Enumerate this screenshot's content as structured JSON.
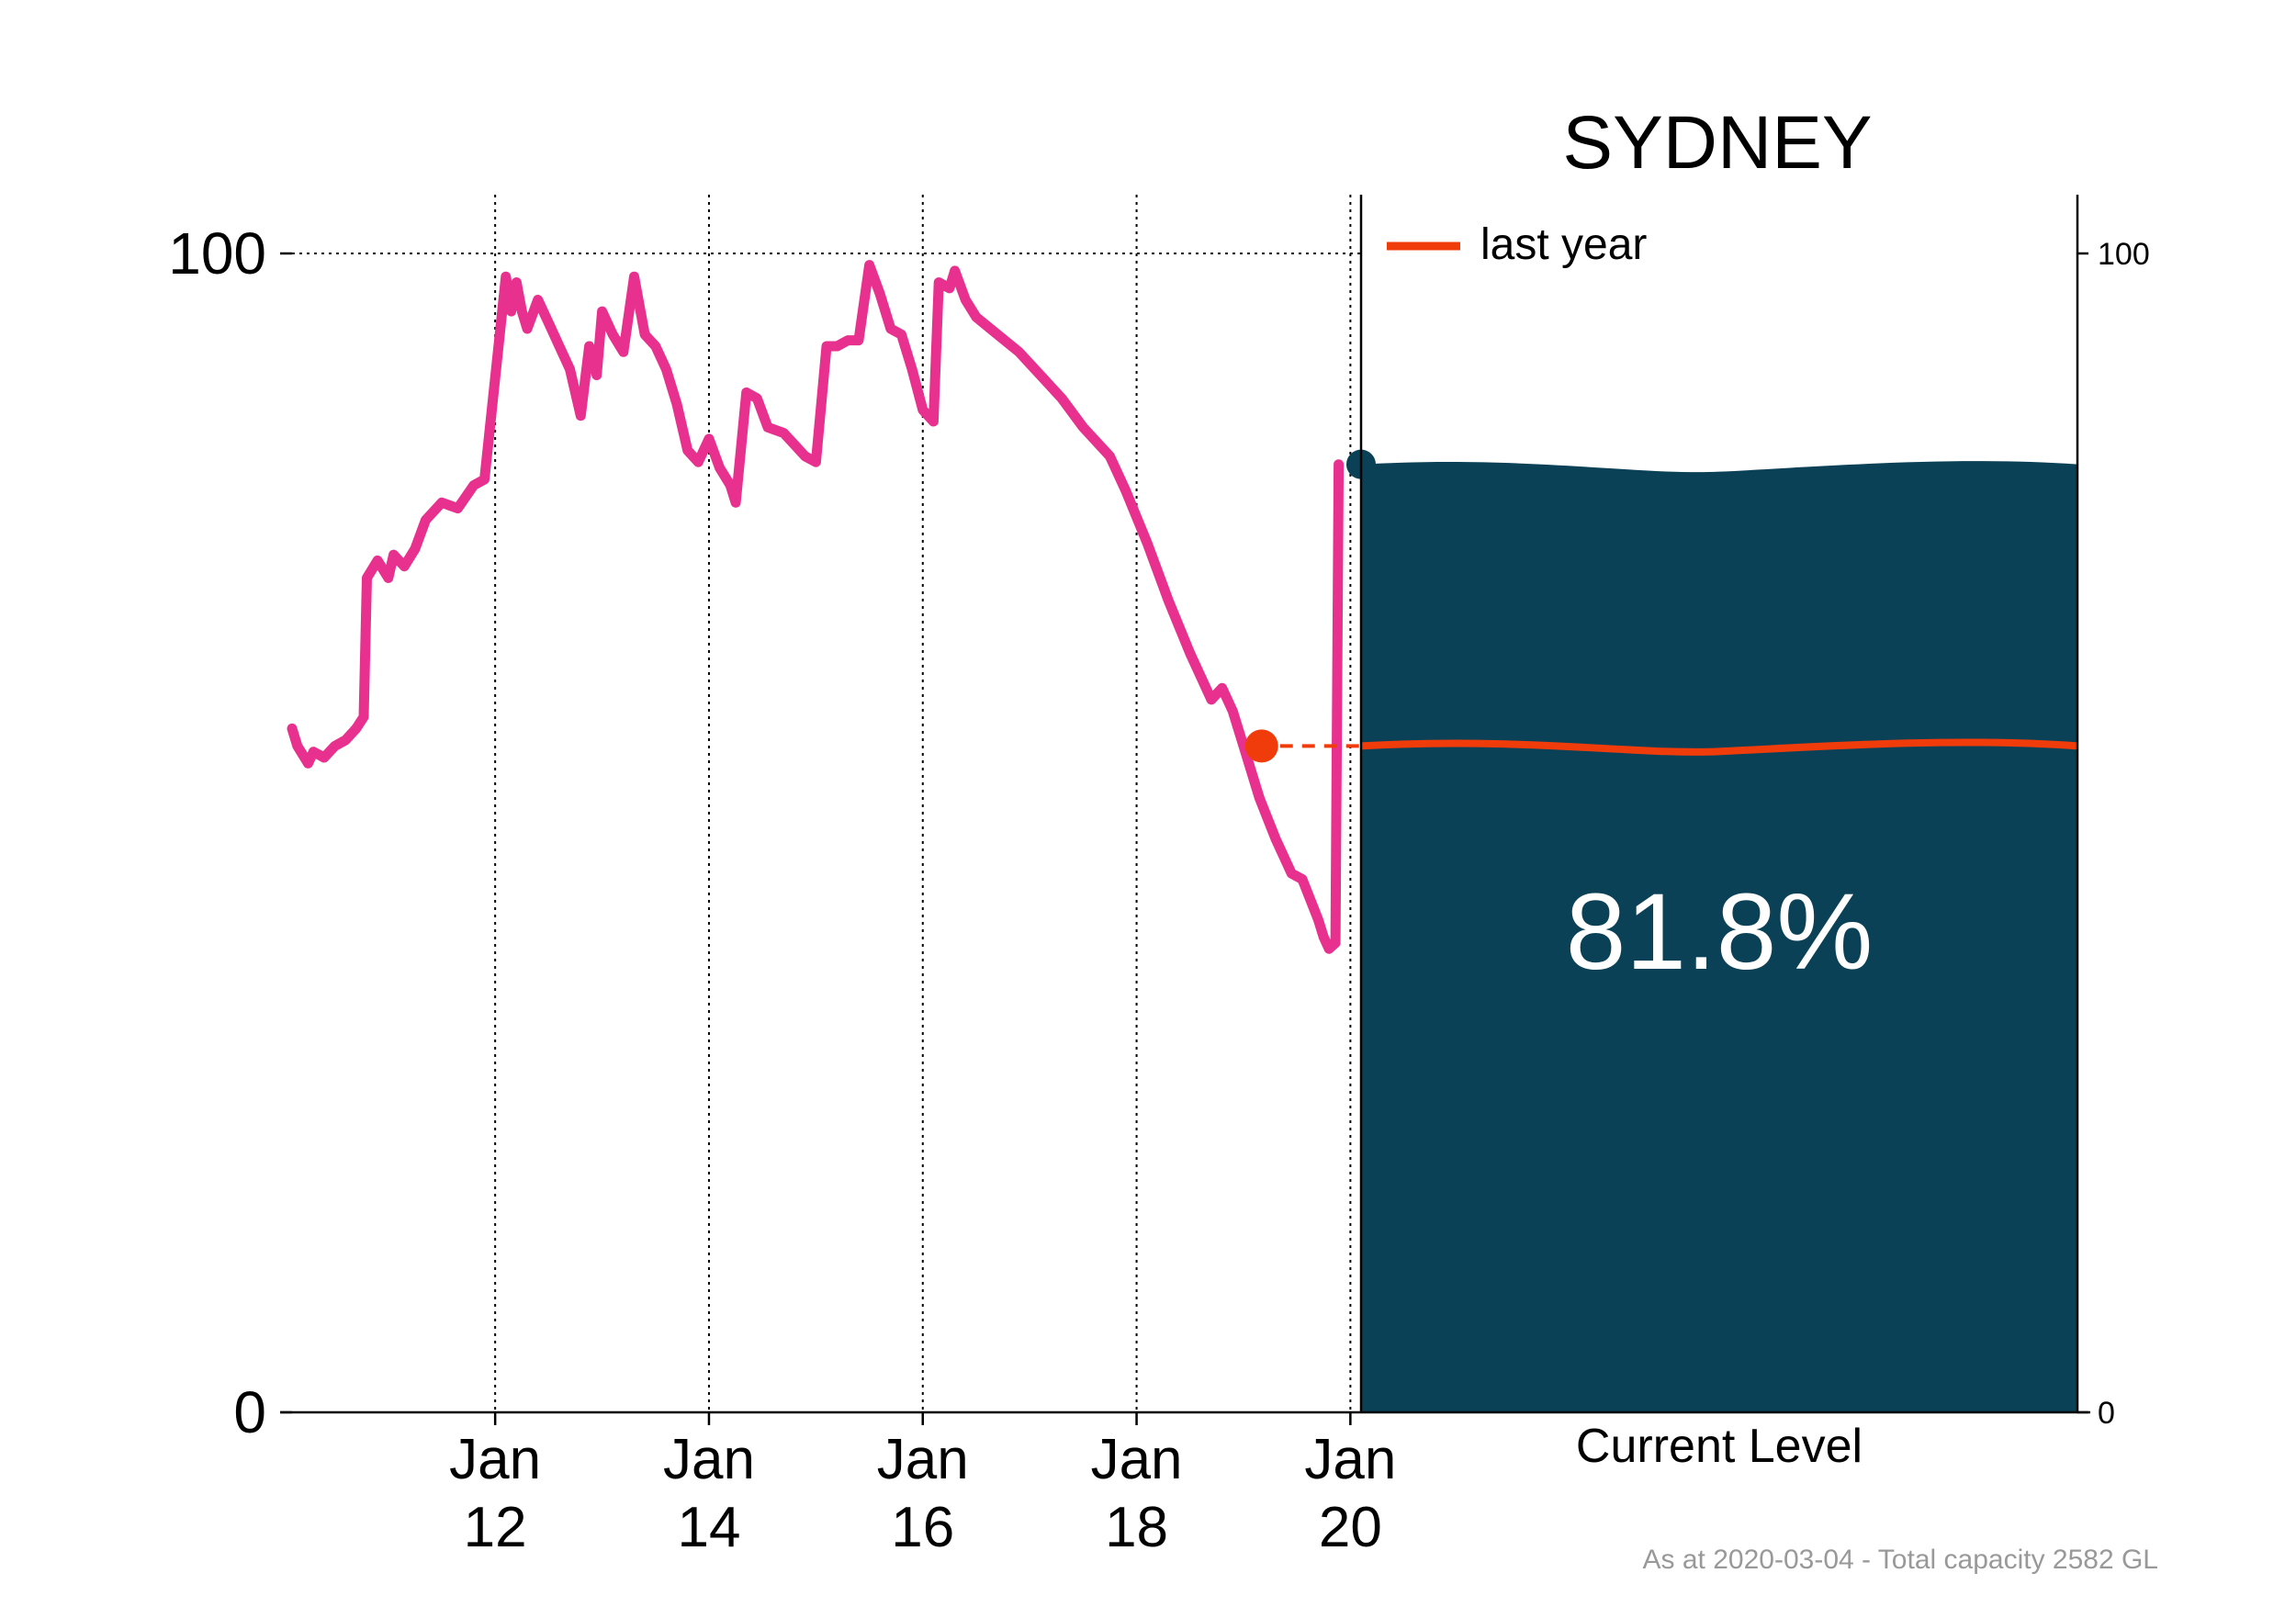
{
  "title": "SYDNEY",
  "footnote": "As at 2020-03-04 - Total capacity 2582 GL",
  "colors": {
    "history_line": "#e8318f",
    "water": "#0b4157",
    "last_year": "#f03c0a",
    "axis": "#000000",
    "footnote": "#999999"
  },
  "chart_data": [
    {
      "type": "line",
      "title": "",
      "xlabel": "",
      "ylabel": "",
      "x_axis": "year",
      "xlim": [
        2010.1,
        2020.1
      ],
      "ylim": [
        0,
        100
      ],
      "xticks": [
        {
          "value": 2012,
          "label": [
            "Jan",
            "12"
          ]
        },
        {
          "value": 2014,
          "label": [
            "Jan",
            "14"
          ]
        },
        {
          "value": 2016,
          "label": [
            "Jan",
            "16"
          ]
        },
        {
          "value": 2018,
          "label": [
            "Jan",
            "18"
          ]
        },
        {
          "value": 2020,
          "label": [
            "Jan",
            "20"
          ]
        }
      ],
      "yticks": [
        0,
        100
      ],
      "grid": {
        "x": true,
        "y_at": [
          100
        ]
      },
      "series": [
        {
          "name": "",
          "points": [
            [
              2010.1,
              59.0
            ],
            [
              2010.15,
              57.5
            ],
            [
              2010.25,
              56.0
            ],
            [
              2010.3,
              57.0
            ],
            [
              2010.4,
              56.5
            ],
            [
              2010.5,
              57.5
            ],
            [
              2010.6,
              58.0
            ],
            [
              2010.7,
              59.0
            ],
            [
              2010.77,
              60.0
            ],
            [
              2010.8,
              72.0
            ],
            [
              2010.9,
              73.5
            ],
            [
              2011.0,
              72.0
            ],
            [
              2011.05,
              74.0
            ],
            [
              2011.15,
              73.0
            ],
            [
              2011.25,
              74.5
            ],
            [
              2011.35,
              77.0
            ],
            [
              2011.5,
              78.5
            ],
            [
              2011.65,
              78.0
            ],
            [
              2011.8,
              80.0
            ],
            [
              2011.9,
              80.5
            ],
            [
              2012.1,
              98.0
            ],
            [
              2012.15,
              95.0
            ],
            [
              2012.2,
              97.5
            ],
            [
              2012.25,
              95.0
            ],
            [
              2012.3,
              93.5
            ],
            [
              2012.4,
              96.0
            ],
            [
              2012.5,
              94.0
            ],
            [
              2012.6,
              92.0
            ],
            [
              2012.7,
              90.0
            ],
            [
              2012.8,
              86.0
            ],
            [
              2012.88,
              92.0
            ],
            [
              2012.95,
              89.5
            ],
            [
              2013.0,
              95.0
            ],
            [
              2013.1,
              93.0
            ],
            [
              2013.2,
              91.5
            ],
            [
              2013.3,
              98.0
            ],
            [
              2013.4,
              93.0
            ],
            [
              2013.5,
              92.0
            ],
            [
              2013.6,
              90.0
            ],
            [
              2013.7,
              87.0
            ],
            [
              2013.8,
              83.0
            ],
            [
              2013.9,
              82.0
            ],
            [
              2014.0,
              84.0
            ],
            [
              2014.1,
              81.5
            ],
            [
              2014.2,
              80.0
            ],
            [
              2014.25,
              78.5
            ],
            [
              2014.35,
              88.0
            ],
            [
              2014.45,
              87.5
            ],
            [
              2014.55,
              85.0
            ],
            [
              2014.7,
              84.5
            ],
            [
              2014.8,
              83.5
            ],
            [
              2014.9,
              82.5
            ],
            [
              2015.0,
              82.0
            ],
            [
              2015.1,
              92.0
            ],
            [
              2015.2,
              92.0
            ],
            [
              2015.3,
              92.5
            ],
            [
              2015.4,
              92.5
            ],
            [
              2015.5,
              99.0
            ],
            [
              2015.6,
              96.5
            ],
            [
              2015.7,
              93.5
            ],
            [
              2015.8,
              93.0
            ],
            [
              2015.9,
              90.0
            ],
            [
              2016.0,
              86.5
            ],
            [
              2016.1,
              85.5
            ],
            [
              2016.15,
              97.5
            ],
            [
              2016.25,
              97.0
            ],
            [
              2016.3,
              98.5
            ],
            [
              2016.4,
              96.0
            ],
            [
              2016.5,
              94.5
            ],
            [
              2016.7,
              93.0
            ],
            [
              2016.9,
              91.5
            ],
            [
              2017.1,
              89.5
            ],
            [
              2017.3,
              87.5
            ],
            [
              2017.5,
              85.0
            ],
            [
              2017.75,
              82.5
            ],
            [
              2017.9,
              79.5
            ],
            [
              2018.1,
              75.0
            ],
            [
              2018.3,
              70.0
            ],
            [
              2018.5,
              65.5
            ],
            [
              2018.7,
              61.5
            ],
            [
              2018.8,
              62.5
            ],
            [
              2018.9,
              60.5
            ],
            [
              2019.0,
              57.5
            ],
            [
              2019.15,
              53.0
            ],
            [
              2019.3,
              49.5
            ],
            [
              2019.45,
              46.5
            ],
            [
              2019.55,
              46.0
            ],
            [
              2019.7,
              42.5
            ],
            [
              2019.75,
              41.0
            ],
            [
              2019.8,
              40.0
            ],
            [
              2019.86,
              40.5
            ],
            [
              2019.89,
              81.8
            ]
          ]
        }
      ],
      "last_year_marker": {
        "x": 2019.17,
        "value": 57.5
      },
      "current_marker": {
        "x": 2019.95,
        "value": 81.8
      }
    },
    {
      "type": "area",
      "title": "SYDNEY",
      "xlabel": "Current Level",
      "ylim": [
        0,
        100
      ],
      "yticks": [
        0,
        100
      ],
      "current_level_percent": 81.8,
      "current_level_label": "81.8%",
      "legend": {
        "position": "top-left",
        "entries": [
          {
            "label": "last year"
          }
        ]
      },
      "last_year_level_percent": 57.5
    }
  ]
}
